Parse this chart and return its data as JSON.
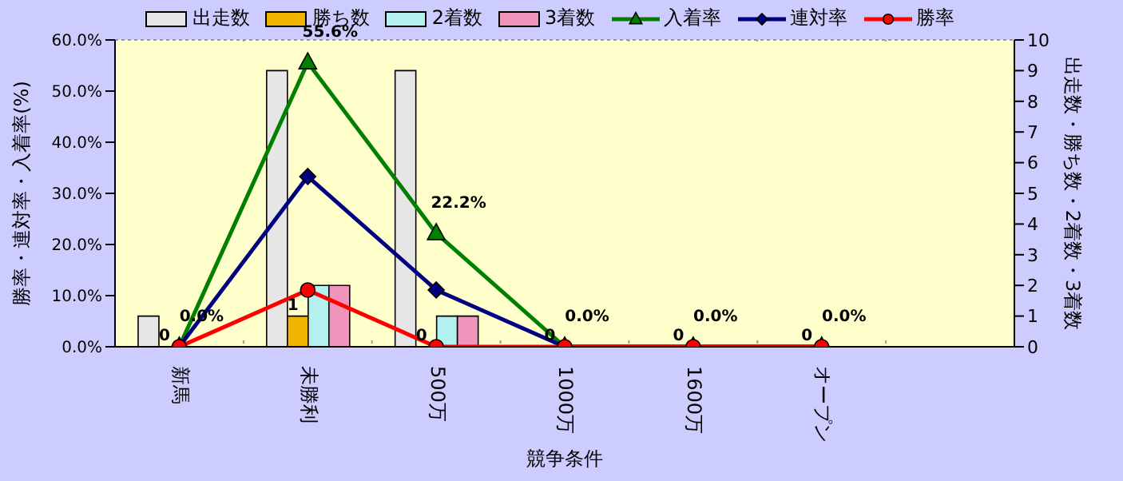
{
  "chart_data": {
    "type": "bar",
    "categories": [
      "新馬",
      "未勝利",
      "500万",
      "1000万",
      "1600万",
      "オープン",
      null
    ],
    "xlabel": "競争条件",
    "ylabel": "勝率・連対率・入着率(%)",
    "y2label": "出走数・勝ち数・2着数・3着数",
    "series": [
      {
        "name": "出走数",
        "axis": "y2",
        "color": "#e6e6e6",
        "values": [
          1,
          9,
          9,
          0,
          0,
          0,
          null
        ]
      },
      {
        "name": "勝ち数",
        "axis": "y2",
        "color": "#f0b400",
        "values": [
          0,
          1,
          0,
          0,
          0,
          0,
          null
        ],
        "value_labels": [
          "0",
          "1",
          "0",
          "0",
          "0",
          "0",
          null
        ]
      },
      {
        "name": "2着数",
        "axis": "y2",
        "color": "#b4f0f0",
        "values": [
          0,
          2,
          1,
          0,
          0,
          0,
          null
        ]
      },
      {
        "name": "3着数",
        "axis": "y2",
        "color": "#f094bc",
        "values": [
          0,
          2,
          1,
          0,
          0,
          0,
          null
        ]
      },
      {
        "name": "入着率",
        "type": "line",
        "marker": "triangle",
        "color": "#008000",
        "values": [
          0,
          55.6,
          22.2,
          0,
          0,
          0,
          null
        ],
        "value_labels": [
          "0.0%",
          "55.6%",
          "22.2%",
          "0.0%",
          "0.0%",
          "0.0%",
          null
        ]
      },
      {
        "name": "連対率",
        "type": "line",
        "marker": "diamond",
        "color": "#000080",
        "values": [
          0,
          33.3,
          11.1,
          0,
          0,
          0,
          null
        ]
      },
      {
        "name": "勝率",
        "type": "line",
        "marker": "circle",
        "color": "#ff0000",
        "values": [
          0,
          11.1,
          0,
          0,
          0,
          0,
          null
        ]
      }
    ],
    "ylim": [
      0,
      60
    ],
    "yticks": [
      {
        "value": 0,
        "label": "0.0%"
      },
      {
        "value": 10,
        "label": "10.0%"
      },
      {
        "value": 20,
        "label": "20.0%"
      },
      {
        "value": 30,
        "label": "30.0%"
      },
      {
        "value": 40,
        "label": "40.0%"
      },
      {
        "value": 50,
        "label": "50.0%"
      },
      {
        "value": 60,
        "label": "60.0%"
      }
    ],
    "y2lim": [
      0,
      10
    ],
    "y2ticks": [
      0,
      1,
      2,
      3,
      4,
      5,
      6,
      7,
      8,
      9,
      10
    ],
    "grid": true,
    "legend": "top"
  }
}
